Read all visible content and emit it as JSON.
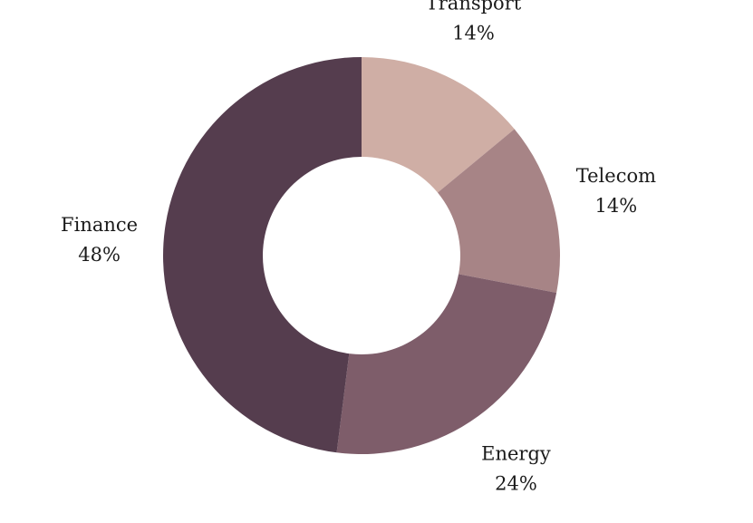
{
  "chart_data": {
    "type": "pie",
    "donut": true,
    "categories": [
      "Transport",
      "Telecom",
      "Energy",
      "Finance"
    ],
    "values": [
      14,
      14,
      24,
      48
    ],
    "labels": [
      "14%",
      "14%",
      "24%",
      "48%"
    ],
    "colors": [
      "#cfaea5",
      "#a78486",
      "#7e5d6a",
      "#553d4e"
    ],
    "legend": "none"
  }
}
